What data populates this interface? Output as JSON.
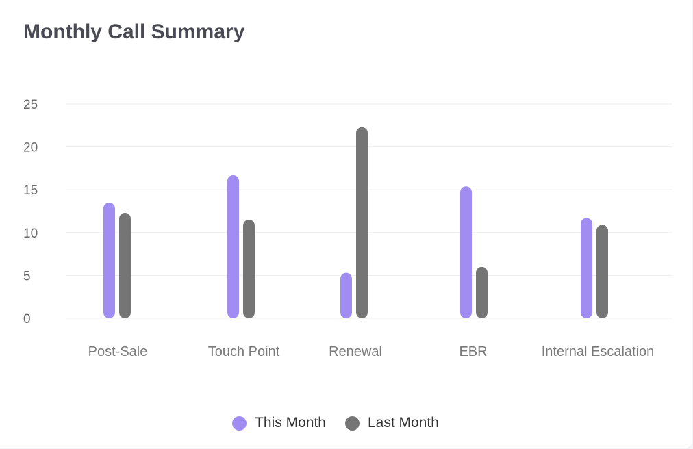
{
  "chart_data": {
    "type": "bar",
    "title": "Monthly Call Summary",
    "categories": [
      "Post-Sale",
      "Touch Point",
      "Renewal",
      "EBR",
      "Internal Escalation"
    ],
    "series": [
      {
        "name": "This Month",
        "color": "#a18cf2",
        "values": [
          13.5,
          16.7,
          5.3,
          15.4,
          11.7
        ]
      },
      {
        "name": "Last Month",
        "color": "#757575",
        "values": [
          12.3,
          11.5,
          22.3,
          6.0,
          10.9
        ]
      }
    ],
    "yticks": [
      0,
      5,
      10,
      15,
      20,
      25
    ],
    "ylim": [
      0,
      25
    ],
    "grid": true,
    "legend_position": "bottom-center",
    "xlabel": "",
    "ylabel": ""
  }
}
